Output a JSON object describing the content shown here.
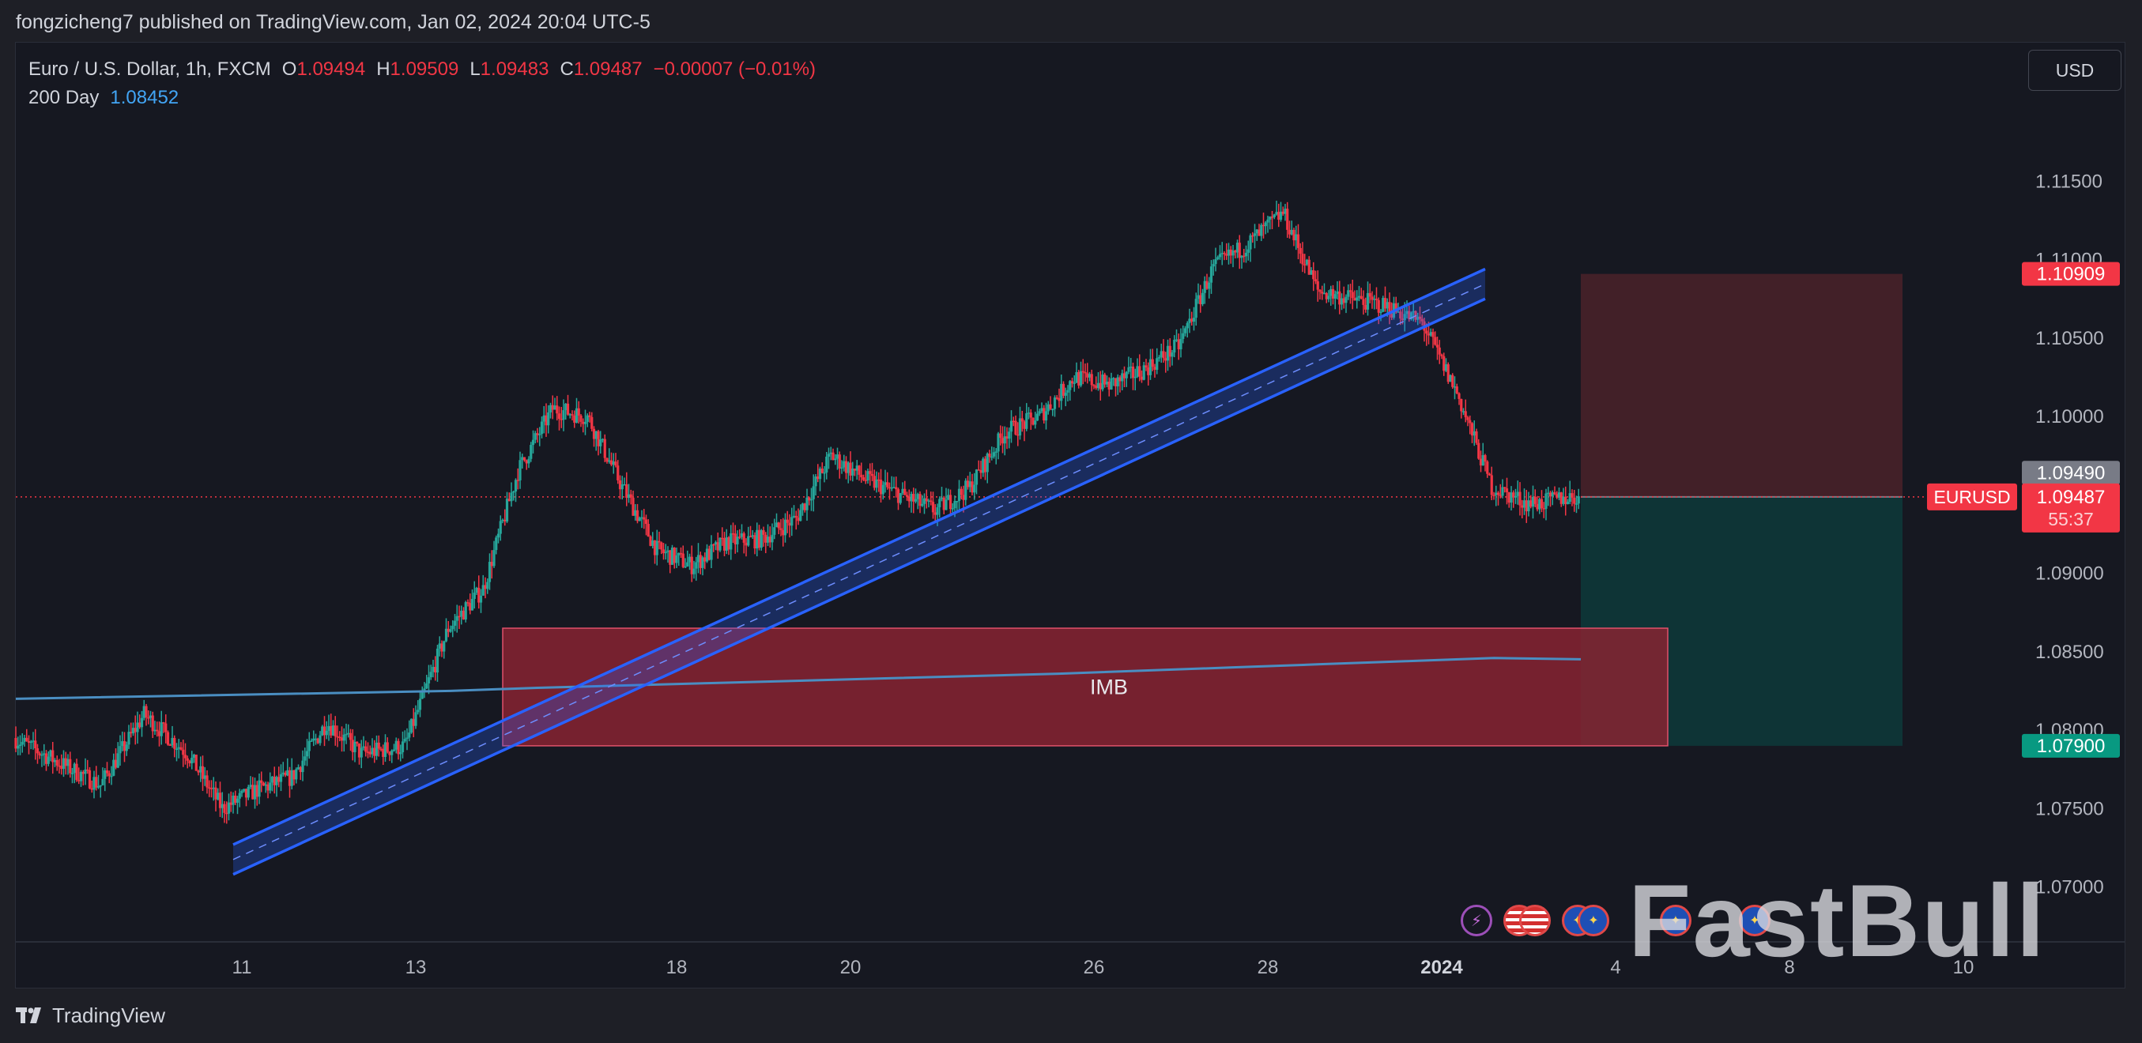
{
  "header": {
    "published_line": "fongzicheng7 published on TradingView.com, Jan 02, 2024 20:04 UTC-5"
  },
  "legend": {
    "symbol": "Euro / U.S. Dollar, 1h, FXCM",
    "open_label": "O",
    "open": "1.09494",
    "high_label": "H",
    "high": "1.09509",
    "low_label": "L",
    "low": "1.09483",
    "close_label": "C",
    "close": "1.09487",
    "change": "−0.00007 (−0.01%)",
    "ma_label": "200 Day",
    "ma_value": "1.08452"
  },
  "currency_button": "USD",
  "footer": {
    "brand": "TradingView"
  },
  "watermark": "FastBull",
  "colors": {
    "up": "#26a69a",
    "down": "#f23645",
    "channel": "#2962ff",
    "ma": "#4a8ec2",
    "imb_fill": "#8b2332",
    "target_fill": "#0d3a39",
    "stop_fill": "#4a2229"
  },
  "event_icons": [
    "lightning-icon",
    "us-flag-icon",
    "us-flag-icon",
    "eu-flag-icon",
    "eu-flag-icon",
    "eu-flag-icon",
    "eu-flag-icon"
  ],
  "chart_data": {
    "type": "line",
    "title": "Euro / U.S. Dollar, 1h, FXCM",
    "x_tick_labels": [
      "11",
      "13",
      "18",
      "20",
      "26",
      "28",
      "2024",
      "4",
      "8",
      "10"
    ],
    "ylim": [
      1.0665,
      1.1195
    ],
    "y_tick_labels": [
      "1.11500",
      "1.11000",
      "1.10500",
      "1.10000",
      "1.09500",
      "1.09000",
      "1.08500",
      "1.08000",
      "1.07500",
      "1.07000"
    ],
    "y_ticks": [
      1.115,
      1.11,
      1.105,
      1.1,
      1.095,
      1.09,
      1.085,
      1.08,
      1.075,
      1.07
    ],
    "series": [
      {
        "name": "EURUSD",
        "x_index": [
          0,
          5,
          10,
          15,
          20,
          24,
          28,
          32,
          36,
          40,
          45,
          50,
          54,
          58,
          62,
          66,
          70,
          74,
          78,
          82,
          86,
          90,
          94,
          98,
          102,
          106,
          110,
          114,
          118,
          122,
          126,
          130,
          134,
          138,
          142,
          146,
          150,
          154,
          158,
          162,
          166,
          170,
          172,
          174,
          176,
          178,
          180
        ],
        "values": [
          1.0795,
          1.078,
          1.0765,
          1.081,
          1.0785,
          1.075,
          1.0762,
          1.077,
          1.0805,
          1.0785,
          1.079,
          1.0865,
          1.089,
          1.0965,
          1.1005,
          1.1,
          1.0955,
          1.0915,
          1.0905,
          1.092,
          1.0922,
          1.0935,
          1.0975,
          1.096,
          1.095,
          1.094,
          1.0955,
          1.099,
          1.1,
          1.1025,
          1.102,
          1.103,
          1.1045,
          1.1095,
          1.111,
          1.113,
          1.108,
          1.1075,
          1.107,
          1.106,
          1.1015,
          1.0955,
          1.095,
          1.0945,
          1.0945,
          1.0948,
          1.09487
        ]
      },
      {
        "name": "200 Day",
        "x_index": [
          0,
          50,
          60,
          80,
          100,
          120,
          140,
          150,
          160,
          170,
          180
        ],
        "values": [
          1.082,
          1.0825,
          1.0827,
          1.083,
          1.0833,
          1.0836,
          1.084,
          1.0842,
          1.0844,
          1.0846,
          1.08452
        ]
      }
    ],
    "channel": {
      "lower": [
        {
          "x": 25,
          "y": 1.0708
        },
        {
          "x": 169,
          "y": 1.1075
        }
      ],
      "upper": [
        {
          "x": 25,
          "y": 1.0727
        },
        {
          "x": 169,
          "y": 1.1094
        }
      ]
    },
    "imb_zone": {
      "label": "IMB",
      "from": 56,
      "to": 190,
      "top": 1.0865,
      "bottom": 1.079
    },
    "position": {
      "from": 180,
      "to": 217,
      "entry": 1.09487,
      "stop": 1.10909,
      "target": 1.079
    },
    "price_labels": {
      "stop": "1.10909",
      "ask": "1.09490",
      "last": "1.09487",
      "countdown": "55:37",
      "target": "1.07900",
      "symbol": "EURUSD"
    }
  }
}
